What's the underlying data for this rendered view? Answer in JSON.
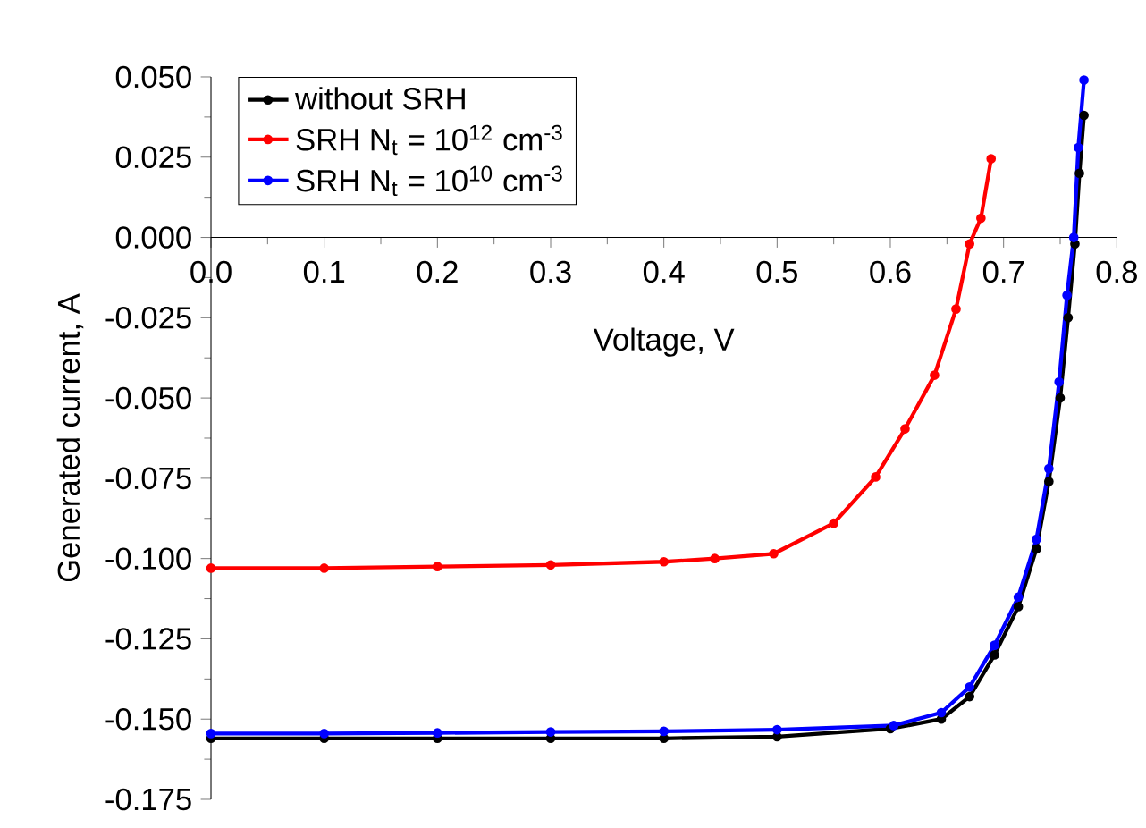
{
  "chart_data": {
    "type": "line",
    "xlabel": "Voltage, V",
    "ylabel": "Generated current, A",
    "xlim": [
      0,
      0.8
    ],
    "ylim": [
      -0.175,
      0.05
    ],
    "xticks": [
      {
        "value": 0,
        "label": "0.0"
      },
      0.1,
      0.2,
      0.3,
      0.4,
      0.5,
      0.6,
      0.7,
      0.8
    ],
    "yticks": [
      {
        "value": -0.175,
        "label": "-0.175"
      },
      {
        "value": -0.15,
        "label": "-0.150"
      },
      {
        "value": -0.125,
        "label": "-0.125"
      },
      {
        "value": -0.1,
        "label": "-0.100"
      },
      {
        "value": -0.075,
        "label": "-0.075"
      },
      {
        "value": -0.05,
        "label": "-0.050"
      },
      {
        "value": -0.025,
        "label": "-0.025"
      },
      {
        "value": 0,
        "label": "0.000"
      },
      {
        "value": 0.025,
        "label": "0.025"
      },
      {
        "value": 0.05,
        "label": "0.050"
      }
    ],
    "legend": "top left",
    "marker": "circle",
    "line_style": "solid",
    "grid": false,
    "series": [
      {
        "name": "without SRH",
        "color": "#000000",
        "x": [
          0,
          0.1,
          0.2,
          0.3,
          0.4,
          0.5,
          0.6,
          0.645,
          0.67,
          0.692,
          0.713,
          0.729,
          0.74,
          0.75,
          0.757,
          0.763,
          0.767,
          0.771
        ],
        "values": [
          -0.156,
          -0.156,
          -0.156,
          -0.156,
          -0.156,
          -0.1555,
          -0.153,
          -0.15,
          -0.143,
          -0.13,
          -0.115,
          -0.097,
          -0.076,
          -0.05,
          -0.025,
          -0.002,
          0.02,
          0.038
        ]
      },
      {
        "name": "SRH N$_{t}$ = 10$^{12}$ cm$^{-3}$",
        "color": "#ff0000",
        "x": [
          0,
          0.1,
          0.2,
          0.3,
          0.4,
          0.445,
          0.497,
          0.55,
          0.587,
          0.613,
          0.639,
          0.658,
          0.67,
          0.68,
          0.689
        ],
        "values": [
          -0.103,
          -0.103,
          -0.1025,
          -0.102,
          -0.101,
          -0.1,
          -0.0985,
          -0.089,
          -0.0746,
          -0.0596,
          -0.0429,
          -0.0223,
          -0.002,
          0.006,
          0.0245
        ]
      },
      {
        "name": "SRH N$_{t}$ = 10$^{10}$ cm$^{-3}$",
        "color": "#0000ff",
        "x": [
          0,
          0.1,
          0.2,
          0.3,
          0.4,
          0.5,
          0.603,
          0.645,
          0.67,
          0.692,
          0.713,
          0.729,
          0.74,
          0.749,
          0.756,
          0.762,
          0.766,
          0.771
        ],
        "values": [
          -0.1545,
          -0.1545,
          -0.1543,
          -0.154,
          -0.1538,
          -0.1533,
          -0.152,
          -0.148,
          -0.14,
          -0.127,
          -0.112,
          -0.094,
          -0.072,
          -0.045,
          -0.018,
          0.0,
          0.028,
          0.049
        ]
      }
    ]
  }
}
